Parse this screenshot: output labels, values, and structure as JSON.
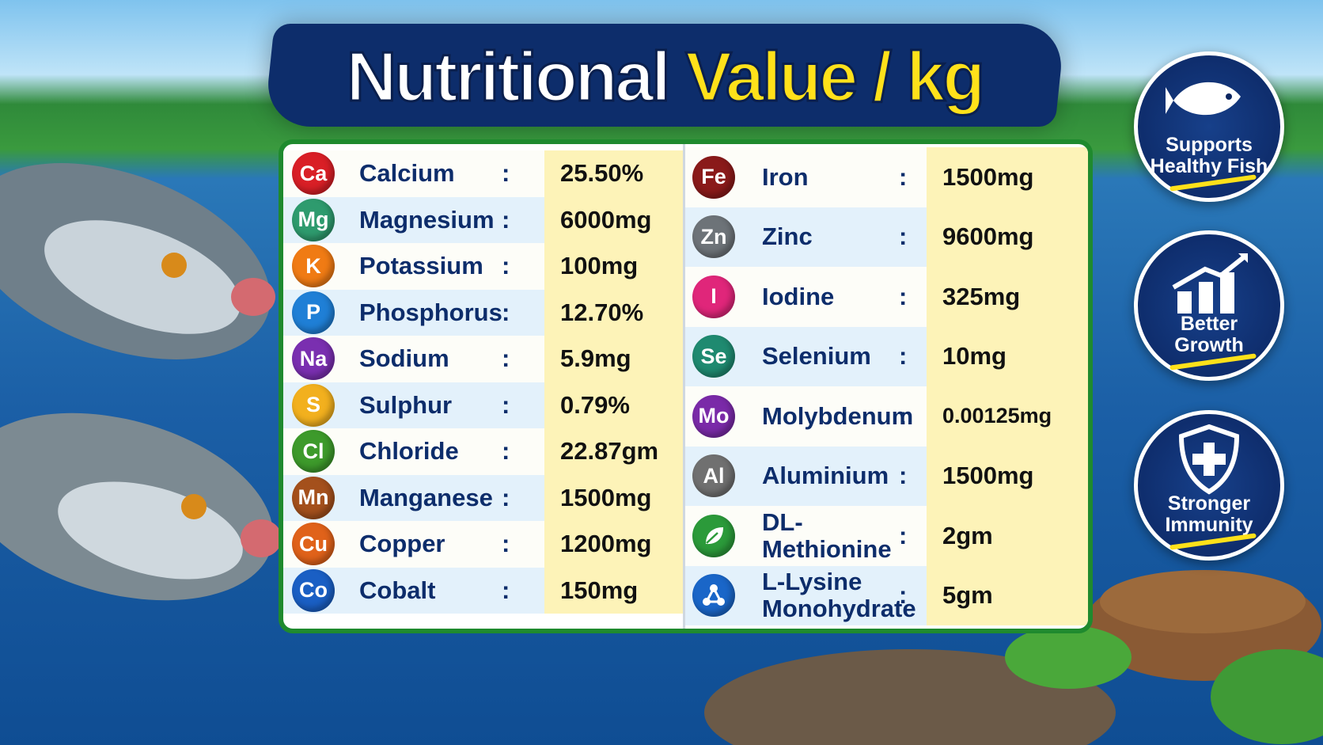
{
  "header": {
    "title_main": "Nutritional",
    "title_accent": "Value / kg"
  },
  "table": {
    "separator": ":",
    "left": [
      {
        "symbol": "Ca",
        "name": "Calcium",
        "value": "25.50%",
        "color": "#d91f26"
      },
      {
        "symbol": "Mg",
        "name": "Magnesium",
        "value": "6000mg",
        "color": "#2e9b6e"
      },
      {
        "symbol": "K",
        "name": "Potassium",
        "value": "100mg",
        "color": "#f07b14"
      },
      {
        "symbol": "P",
        "name": "Phosphorus",
        "value": "12.70%",
        "color": "#1f7fd6"
      },
      {
        "symbol": "Na",
        "name": "Sodium",
        "value": "5.9mg",
        "color": "#7a2fb0"
      },
      {
        "symbol": "S",
        "name": "Sulphur",
        "value": "0.79%",
        "color": "#f2b01e"
      },
      {
        "symbol": "Cl",
        "name": "Chloride",
        "value": "22.87gm",
        "color": "#3d9a2b"
      },
      {
        "symbol": "Mn",
        "name": "Manganese",
        "value": "1500mg",
        "color": "#a4501c"
      },
      {
        "symbol": "Cu",
        "name": "Copper",
        "value": "1200mg",
        "color": "#e0621a"
      },
      {
        "symbol": "Co",
        "name": "Cobalt",
        "value": "150mg",
        "color": "#1a5fc4"
      }
    ],
    "right": [
      {
        "symbol": "Fe",
        "name": "Iron",
        "value": "1500mg",
        "color": "#8a1a1a"
      },
      {
        "symbol": "Zn",
        "name": "Zinc",
        "value": "9600mg",
        "color": "#6d7378"
      },
      {
        "symbol": "I",
        "name": "Iodine",
        "value": "325mg",
        "color": "#e0267a"
      },
      {
        "symbol": "Se",
        "name": "Selenium",
        "value": "10mg",
        "color": "#1f8a70"
      },
      {
        "symbol": "Mo",
        "name": "Molybdenum",
        "value": "0.00125mg",
        "color": "#7a2aa8"
      },
      {
        "symbol": "Al",
        "name": "Aluminium",
        "value": "1500mg",
        "color": "#707070"
      },
      {
        "name": "DL-Methionine",
        "value": "2gm",
        "color": "#2b9a3a"
      },
      {
        "name": "L-Lysine Monohydrate",
        "value": "5gm",
        "color": "#1a66c8"
      }
    ]
  },
  "badges": [
    {
      "lines": [
        "Supports",
        "Healthy Fish"
      ]
    },
    {
      "lines": [
        "Better",
        "Growth"
      ]
    },
    {
      "lines": [
        "Stronger",
        "Immunity"
      ]
    }
  ]
}
